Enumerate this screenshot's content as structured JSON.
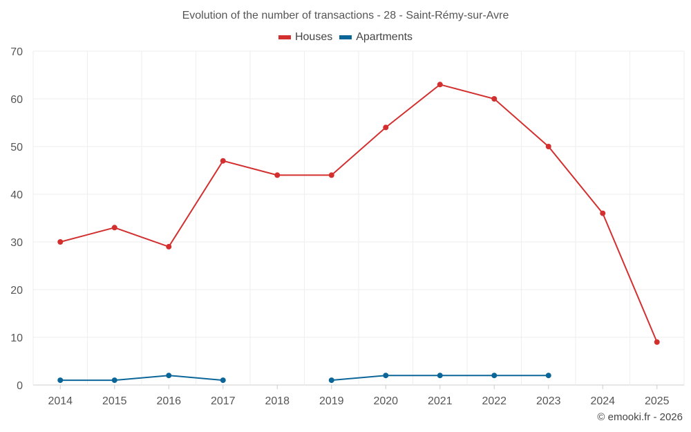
{
  "chart_data": {
    "type": "line",
    "title": "Evolution of the number of transactions - 28 - Saint-Rémy-sur-Avre",
    "categories": [
      "2014",
      "2015",
      "2016",
      "2017",
      "2018",
      "2019",
      "2020",
      "2021",
      "2022",
      "2023",
      "2024",
      "2025"
    ],
    "ylim": [
      0,
      70
    ],
    "yticks": [
      0,
      10,
      20,
      30,
      40,
      50,
      60,
      70
    ],
    "grid": true,
    "legend_position": "top-center",
    "series": [
      {
        "name": "Houses",
        "color": "#d32f2f",
        "values": [
          30,
          33,
          29,
          47,
          44,
          44,
          54,
          63,
          60,
          50,
          36,
          9
        ]
      },
      {
        "name": "Apartments",
        "color": "#0a6699",
        "values": [
          1,
          1,
          2,
          1,
          null,
          1,
          2,
          2,
          2,
          2,
          null,
          null
        ]
      }
    ]
  },
  "footer": {
    "credit": "© emooki.fr - 2026"
  }
}
